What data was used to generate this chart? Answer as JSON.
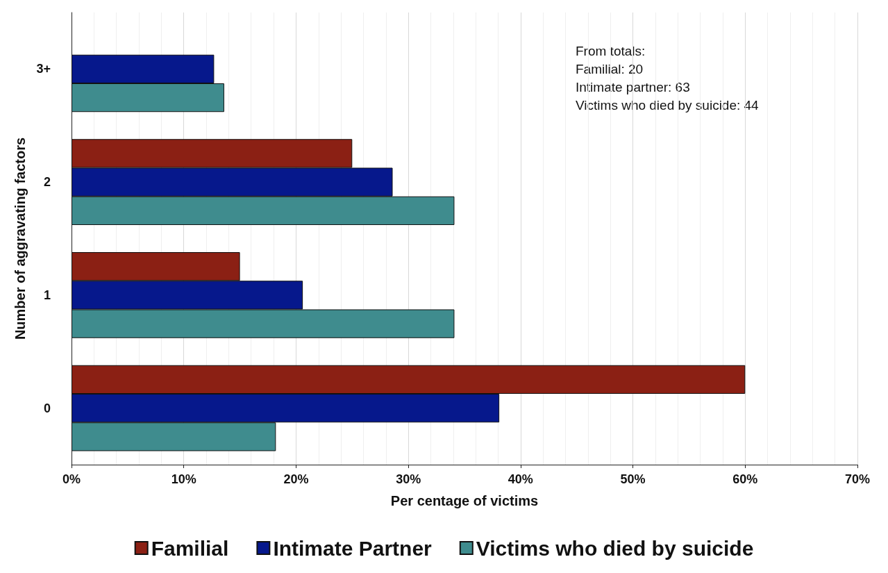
{
  "chart_data": {
    "type": "bar",
    "orientation": "horizontal",
    "xlabel": "Per centage of victims",
    "ylabel": "Number of aggravating factors",
    "categories": [
      "3+",
      "2",
      "1",
      "0"
    ],
    "series": [
      {
        "name": "Familial",
        "color": "#8b2014",
        "values": [
          null,
          25,
          15,
          60
        ]
      },
      {
        "name": "Intimate Partner",
        "color": "#06188c",
        "values": [
          12.7,
          28.6,
          20.6,
          38.1
        ]
      },
      {
        "name": "Victims who died by suicide",
        "color": "#3f8c8e",
        "values": [
          13.6,
          34.1,
          34.1,
          18.2
        ]
      }
    ],
    "xlim": [
      0,
      70
    ],
    "xticks": [
      {
        "value": 0,
        "label": "0%"
      },
      {
        "value": 10,
        "label": "10%"
      },
      {
        "value": 20,
        "label": "20%"
      },
      {
        "value": 30,
        "label": "30%"
      },
      {
        "value": 40,
        "label": "40%"
      },
      {
        "value": 50,
        "label": "50%"
      },
      {
        "value": 60,
        "label": "60%"
      },
      {
        "value": 70,
        "label": "70%"
      }
    ],
    "grid": "x",
    "legend": "bottom",
    "annotations": [
      "From totals:",
      "Familial: 20",
      "Intimate partner: 63",
      "Victims who died by suicide: 44"
    ]
  }
}
